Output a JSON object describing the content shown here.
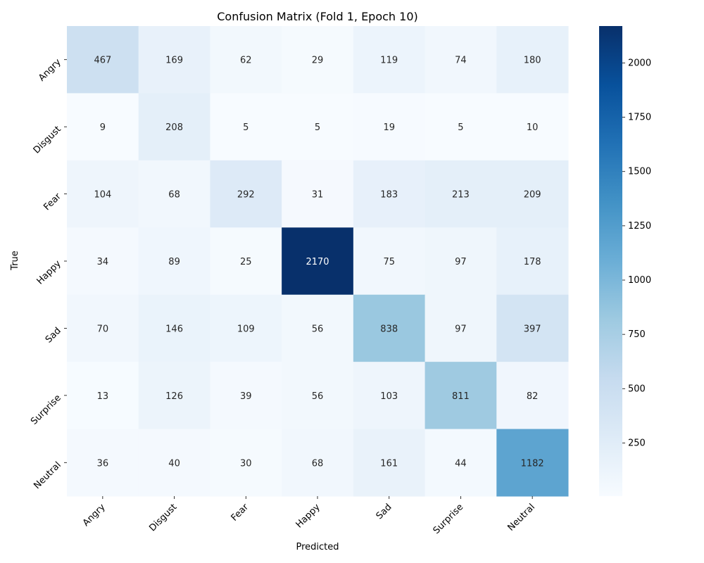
{
  "chart_data": {
    "type": "heatmap",
    "title": "Confusion Matrix (Fold 1, Epoch 10)",
    "xlabel": "Predicted",
    "ylabel": "True",
    "x_categories": [
      "Angry",
      "Disgust",
      "Fear",
      "Happy",
      "Sad",
      "Surprise",
      "Neutral"
    ],
    "y_categories": [
      "Angry",
      "Disgust",
      "Fear",
      "Happy",
      "Sad",
      "Surprise",
      "Neutral"
    ],
    "values": [
      [
        467,
        169,
        62,
        29,
        119,
        74,
        180
      ],
      [
        9,
        208,
        5,
        5,
        19,
        5,
        10
      ],
      [
        104,
        68,
        292,
        31,
        183,
        213,
        209
      ],
      [
        34,
        89,
        25,
        2170,
        75,
        97,
        178
      ],
      [
        70,
        146,
        109,
        56,
        838,
        97,
        397
      ],
      [
        13,
        126,
        39,
        56,
        103,
        811,
        82
      ],
      [
        36,
        40,
        30,
        68,
        161,
        44,
        1182
      ]
    ],
    "colormap": "Blues",
    "color_range": [
      5,
      2170
    ],
    "colorbar_ticks": [
      250,
      500,
      750,
      1000,
      1250,
      1500,
      1750,
      2000
    ],
    "tick_rotation": 45,
    "grid": false
  }
}
